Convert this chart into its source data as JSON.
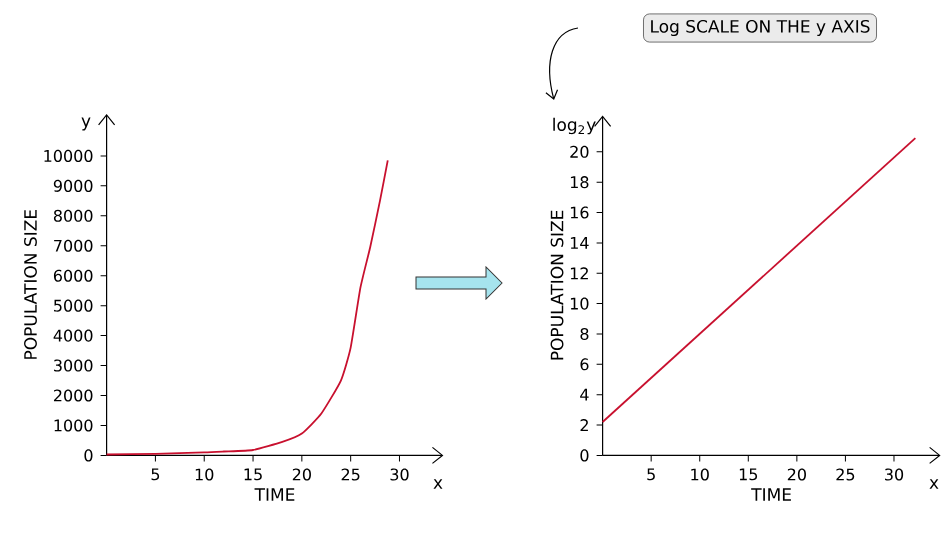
{
  "chart_data": [
    {
      "type": "line",
      "xlabel": "TIME",
      "ylabel": "POPULATION SIZE",
      "annotations": [
        "y",
        "x"
      ],
      "xlim": [
        0,
        34.5
      ],
      "ylim": [
        0,
        11400
      ],
      "xticks": [
        5,
        10,
        15,
        20,
        25,
        30
      ],
      "yticks": [
        {
          "value": 0,
          "label": "0"
        },
        1000,
        2000,
        3000,
        4000,
        5000,
        6000,
        7000,
        8000,
        9000,
        10000
      ],
      "x": [
        0,
        5,
        10,
        12,
        15,
        18,
        20,
        22,
        24,
        25,
        26,
        27,
        28,
        28.8
      ],
      "series": [
        {
          "color": "#c8102e",
          "values": [
            30,
            50,
            100,
            130,
            180,
            450,
            730,
            1400,
            2500,
            3600,
            5600,
            6950,
            8500,
            9850
          ]
        }
      ]
    },
    {
      "type": "line",
      "xlabel": "TIME",
      "ylabel": "POPULATION SIZE",
      "annotations": [
        "log$_{2}$y",
        "x",
        "Log SCALE ON THE y AXIS"
      ],
      "xlim": [
        0,
        34.8
      ],
      "ylim": [
        0,
        22.4
      ],
      "xticks": [
        5,
        10,
        15,
        20,
        25,
        30
      ],
      "yticks": [
        {
          "value": 0,
          "label": "0"
        },
        2,
        4,
        6,
        8,
        10,
        12,
        14,
        16,
        18,
        20
      ],
      "x": [
        0,
        32.2
      ],
      "series": [
        {
          "color": "#c8102e",
          "values": [
            2.2,
            20.9
          ]
        }
      ]
    }
  ]
}
